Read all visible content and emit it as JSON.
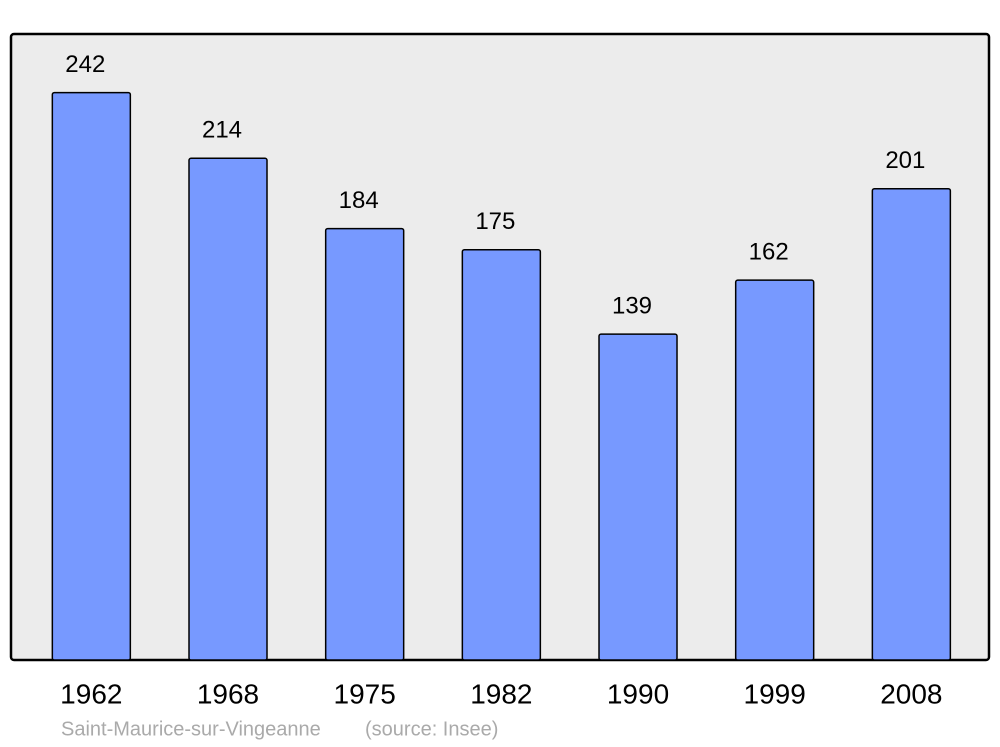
{
  "chart_data": {
    "type": "bar",
    "categories": [
      "1962",
      "1968",
      "1975",
      "1982",
      "1990",
      "1999",
      "2008"
    ],
    "values": [
      242,
      214,
      184,
      175,
      139,
      162,
      201
    ],
    "color": "#7799ff",
    "ylim": [
      0,
      267
    ],
    "place": "Saint-Maurice-sur-Vingeanne",
    "source": "(source: Insee)"
  }
}
